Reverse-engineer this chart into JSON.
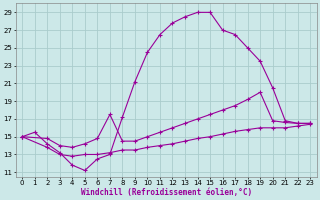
{
  "xlabel": "Windchill (Refroidissement éolien,°C)",
  "bg_color": "#cce8e8",
  "line_color": "#990099",
  "grid_color": "#aacccc",
  "xlim": [
    -0.5,
    23.5
  ],
  "ylim": [
    10.5,
    30
  ],
  "yticks": [
    11,
    13,
    15,
    17,
    19,
    21,
    23,
    25,
    27,
    29
  ],
  "xticks": [
    0,
    1,
    2,
    3,
    4,
    5,
    6,
    7,
    8,
    9,
    10,
    11,
    12,
    13,
    14,
    15,
    16,
    17,
    18,
    19,
    20,
    21,
    22,
    23
  ],
  "line1_x": [
    0,
    1,
    2,
    3,
    4,
    5,
    6,
    7,
    8,
    9,
    10,
    11,
    12,
    13,
    14,
    15,
    16,
    17,
    18,
    19,
    20,
    21,
    22,
    23
  ],
  "line1_y": [
    15.0,
    15.5,
    14.2,
    13.2,
    11.8,
    11.2,
    12.5,
    13.0,
    17.2,
    21.2,
    24.5,
    26.5,
    27.8,
    28.5,
    29.0,
    29.0,
    27.0,
    26.5,
    25.0,
    23.5,
    20.5,
    16.8,
    16.5,
    16.5
  ],
  "line2_x": [
    0,
    2,
    3,
    4,
    5,
    6,
    7,
    8,
    9,
    10,
    11,
    12,
    13,
    14,
    15,
    16,
    17,
    18,
    19,
    20,
    21,
    22,
    23
  ],
  "line2_y": [
    15.0,
    14.8,
    14.0,
    13.8,
    14.2,
    14.8,
    17.5,
    14.5,
    14.5,
    15.0,
    15.5,
    16.0,
    16.5,
    17.0,
    17.5,
    18.0,
    18.5,
    19.2,
    20.0,
    16.8,
    16.6,
    16.5,
    16.5
  ],
  "line3_x": [
    0,
    2,
    3,
    4,
    5,
    6,
    7,
    8,
    9,
    10,
    11,
    12,
    13,
    14,
    15,
    16,
    17,
    18,
    19,
    20,
    21,
    22,
    23
  ],
  "line3_y": [
    15.0,
    13.8,
    13.0,
    12.8,
    13.0,
    13.0,
    13.2,
    13.5,
    13.5,
    13.8,
    14.0,
    14.2,
    14.5,
    14.8,
    15.0,
    15.3,
    15.6,
    15.8,
    16.0,
    16.0,
    16.0,
    16.2,
    16.4
  ]
}
